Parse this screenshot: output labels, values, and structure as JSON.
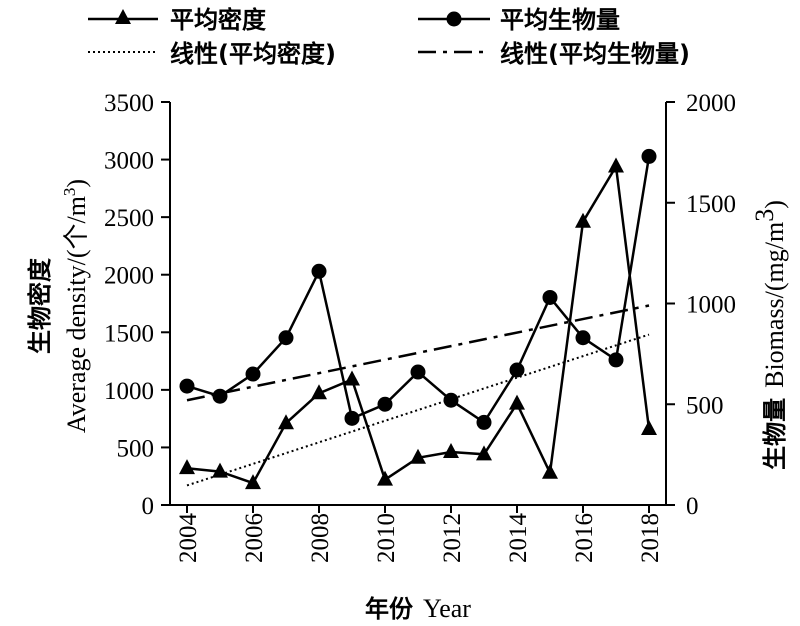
{
  "chart_data": {
    "type": "line",
    "x": [
      2004,
      2005,
      2006,
      2007,
      2008,
      2009,
      2010,
      2011,
      2012,
      2013,
      2014,
      2015,
      2016,
      2017,
      2018
    ],
    "series": [
      {
        "name": "平均密度",
        "axis": "left",
        "marker": "triangle",
        "values": [
          320,
          290,
          190,
          710,
          970,
          1090,
          220,
          410,
          460,
          440,
          880,
          280,
          2460,
          2940,
          660
        ]
      },
      {
        "name": "平均生物量",
        "axis": "right",
        "marker": "circle",
        "values": [
          590,
          540,
          650,
          830,
          1160,
          430,
          500,
          660,
          520,
          410,
          670,
          1030,
          830,
          720,
          1730
        ]
      }
    ],
    "trendlines": [
      {
        "name": "线性(平均密度)",
        "style": "dotted",
        "axis": "left",
        "start": 170,
        "end": 1480
      },
      {
        "name": "线性(平均生物量)",
        "style": "dash-dot",
        "axis": "right",
        "start": 520,
        "end": 990
      }
    ],
    "xlabel_cn": "年份",
    "xlabel_en": "Year",
    "ylabel_left_cn": "生物密度",
    "ylabel_left_en": "Average density/(个/m",
    "ylabel_left_sup": "3",
    "ylabel_left_close": ")",
    "ylabel_right_cn": "生物量",
    "ylabel_right_en": "Biomass/(mg/m",
    "ylabel_right_sup": "3",
    "ylabel_right_close": ")",
    "ylim_left": [
      0,
      3500
    ],
    "yticks_left": [
      0,
      500,
      1000,
      1500,
      2000,
      2500,
      3000,
      3500
    ],
    "ylim_right": [
      0,
      2000
    ],
    "yticks_right": [
      0,
      500,
      1000,
      1500,
      2000
    ],
    "xticks": [
      2004,
      2006,
      2008,
      2010,
      2012,
      2014,
      2016,
      2018
    ],
    "xtick_labels": [
      "2004",
      "2006",
      "2008",
      "2010",
      "2012",
      "2014",
      "2016",
      "2018"
    ],
    "legend_position": "top",
    "grid": false,
    "colors": {
      "line": "#000000",
      "background": "#ffffff"
    }
  }
}
